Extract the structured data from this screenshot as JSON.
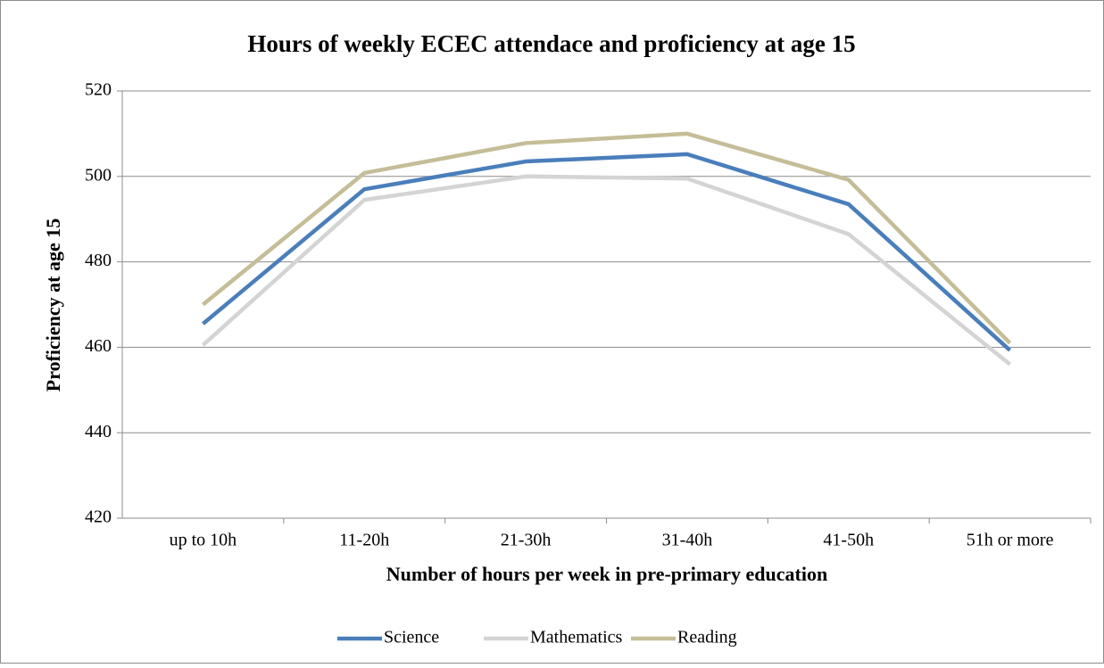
{
  "chart_data": {
    "type": "line",
    "title": "Hours of weekly ECEC attendace and proficiency at age 15",
    "x_label": "Number of hours per week in pre-primary education",
    "y_label": "Proficiency at age 15",
    "categories": [
      "up to 10h",
      "11-20h",
      "21-30h",
      "31-40h",
      "41-50h",
      "51h or more"
    ],
    "series": [
      {
        "name": "Science",
        "color": "#4a7ebb",
        "values": [
          465.5,
          497,
          503.5,
          505.2,
          493.5,
          459.3
        ]
      },
      {
        "name": "Mathematics",
        "color": "#d4d4d4",
        "values": [
          460.5,
          494.5,
          500,
          499.5,
          486.5,
          456
        ]
      },
      {
        "name": "Reading",
        "color": "#c4bd97",
        "values": [
          470,
          500.8,
          507.8,
          510,
          499.2,
          461
        ]
      }
    ],
    "ylim": [
      420,
      520
    ],
    "yticks": [
      420,
      440,
      460,
      480,
      500,
      520
    ],
    "grid": true,
    "legend": "bottom"
  }
}
